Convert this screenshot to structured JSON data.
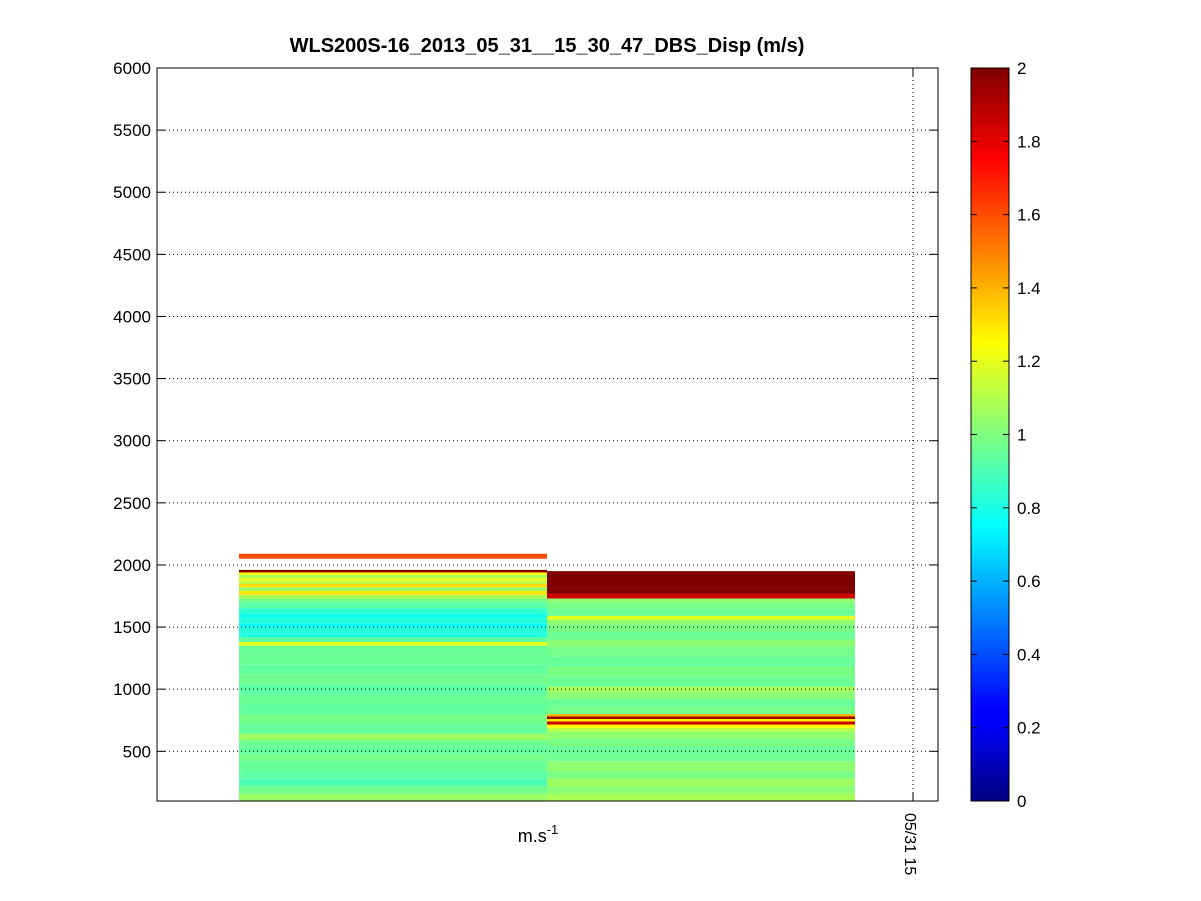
{
  "chart_data": {
    "type": "heatmap",
    "title": "WLS200S-16_2013_05_31__15_30_47_DBS_Disp (m/s)",
    "xlabel_base": "m.s",
    "xlabel_exp": "-1",
    "x_tick_labels": [
      "05/31 15"
    ],
    "ylim": [
      100,
      6000
    ],
    "y_ticks": [
      500,
      1000,
      1500,
      2000,
      2500,
      3000,
      3500,
      4000,
      4500,
      5000,
      5500,
      6000
    ],
    "grid": true,
    "colorbar": {
      "colormap": "jet",
      "range": [
        0,
        2
      ],
      "ticks": [
        0,
        0.2,
        0.4,
        0.6,
        0.8,
        1,
        1.2,
        1.4,
        1.6,
        1.8,
        2
      ]
    },
    "columns": [
      {
        "bands": [
          {
            "y0": 100,
            "y1": 160,
            "v": 1.05
          },
          {
            "y0": 160,
            "y1": 220,
            "v": 0.97
          },
          {
            "y0": 220,
            "y1": 280,
            "v": 0.9
          },
          {
            "y0": 280,
            "y1": 340,
            "v": 0.93
          },
          {
            "y0": 340,
            "y1": 420,
            "v": 0.95
          },
          {
            "y0": 420,
            "y1": 480,
            "v": 0.98
          },
          {
            "y0": 480,
            "y1": 540,
            "v": 0.94
          },
          {
            "y0": 540,
            "y1": 590,
            "v": 0.96
          },
          {
            "y0": 590,
            "y1": 640,
            "v": 1.06
          },
          {
            "y0": 640,
            "y1": 720,
            "v": 0.95
          },
          {
            "y0": 720,
            "y1": 800,
            "v": 0.98
          },
          {
            "y0": 800,
            "y1": 880,
            "v": 0.94
          },
          {
            "y0": 880,
            "y1": 960,
            "v": 0.96
          },
          {
            "y0": 960,
            "y1": 1040,
            "v": 0.93
          },
          {
            "y0": 1040,
            "y1": 1120,
            "v": 0.97
          },
          {
            "y0": 1120,
            "y1": 1200,
            "v": 0.94
          },
          {
            "y0": 1200,
            "y1": 1280,
            "v": 0.96
          },
          {
            "y0": 1280,
            "y1": 1350,
            "v": 0.95
          },
          {
            "y0": 1350,
            "y1": 1380,
            "v": 1.2
          },
          {
            "y0": 1380,
            "y1": 1420,
            "v": 0.93
          },
          {
            "y0": 1420,
            "y1": 1450,
            "v": 0.8
          },
          {
            "y0": 1450,
            "y1": 1500,
            "v": 0.82
          },
          {
            "y0": 1500,
            "y1": 1530,
            "v": 0.75
          },
          {
            "y0": 1530,
            "y1": 1570,
            "v": 0.82
          },
          {
            "y0": 1570,
            "y1": 1610,
            "v": 0.78
          },
          {
            "y0": 1610,
            "y1": 1650,
            "v": 0.84
          },
          {
            "y0": 1650,
            "y1": 1700,
            "v": 0.92
          },
          {
            "y0": 1700,
            "y1": 1730,
            "v": 0.98
          },
          {
            "y0": 1730,
            "y1": 1760,
            "v": 1.08
          },
          {
            "y0": 1760,
            "y1": 1790,
            "v": 1.3
          },
          {
            "y0": 1790,
            "y1": 1820,
            "v": 1.05
          },
          {
            "y0": 1820,
            "y1": 1850,
            "v": 1.32
          },
          {
            "y0": 1850,
            "y1": 1870,
            "v": 1.1
          },
          {
            "y0": 1870,
            "y1": 1895,
            "v": 1.2
          },
          {
            "y0": 1895,
            "y1": 1920,
            "v": 1.08
          },
          {
            "y0": 1920,
            "y1": 1940,
            "v": 1.25
          },
          {
            "y0": 1940,
            "y1": 1960,
            "v": 2.0
          },
          {
            "y0": 2050,
            "y1": 2090,
            "v": 1.6
          }
        ]
      },
      {
        "bands": [
          {
            "y0": 100,
            "y1": 160,
            "v": 1.08
          },
          {
            "y0": 160,
            "y1": 220,
            "v": 1.02
          },
          {
            "y0": 220,
            "y1": 280,
            "v": 1.06
          },
          {
            "y0": 280,
            "y1": 340,
            "v": 0.99
          },
          {
            "y0": 340,
            "y1": 420,
            "v": 1.03
          },
          {
            "y0": 420,
            "y1": 480,
            "v": 0.97
          },
          {
            "y0": 480,
            "y1": 540,
            "v": 0.95
          },
          {
            "y0": 540,
            "y1": 600,
            "v": 0.99
          },
          {
            "y0": 600,
            "y1": 660,
            "v": 1.03
          },
          {
            "y0": 660,
            "y1": 690,
            "v": 1.12
          },
          {
            "y0": 690,
            "y1": 715,
            "v": 1.25
          },
          {
            "y0": 715,
            "y1": 740,
            "v": 1.85
          },
          {
            "y0": 740,
            "y1": 760,
            "v": 1.28
          },
          {
            "y0": 760,
            "y1": 780,
            "v": 1.95
          },
          {
            "y0": 780,
            "y1": 800,
            "v": 1.4
          },
          {
            "y0": 800,
            "y1": 860,
            "v": 0.98
          },
          {
            "y0": 860,
            "y1": 920,
            "v": 0.95
          },
          {
            "y0": 920,
            "y1": 980,
            "v": 1.02
          },
          {
            "y0": 980,
            "y1": 1020,
            "v": 1.08
          },
          {
            "y0": 1020,
            "y1": 1100,
            "v": 0.96
          },
          {
            "y0": 1100,
            "y1": 1180,
            "v": 0.99
          },
          {
            "y0": 1180,
            "y1": 1260,
            "v": 0.95
          },
          {
            "y0": 1260,
            "y1": 1340,
            "v": 0.98
          },
          {
            "y0": 1340,
            "y1": 1400,
            "v": 1.02
          },
          {
            "y0": 1400,
            "y1": 1460,
            "v": 0.96
          },
          {
            "y0": 1460,
            "y1": 1520,
            "v": 0.99
          },
          {
            "y0": 1520,
            "y1": 1560,
            "v": 1.03
          },
          {
            "y0": 1560,
            "y1": 1590,
            "v": 1.2
          },
          {
            "y0": 1590,
            "y1": 1650,
            "v": 0.96
          },
          {
            "y0": 1650,
            "y1": 1700,
            "v": 0.99
          },
          {
            "y0": 1700,
            "y1": 1730,
            "v": 1.03
          },
          {
            "y0": 1730,
            "y1": 1770,
            "v": 1.85
          },
          {
            "y0": 1770,
            "y1": 1810,
            "v": 2.0
          },
          {
            "y0": 1810,
            "y1": 1950,
            "v": 2.0
          }
        ]
      }
    ]
  }
}
